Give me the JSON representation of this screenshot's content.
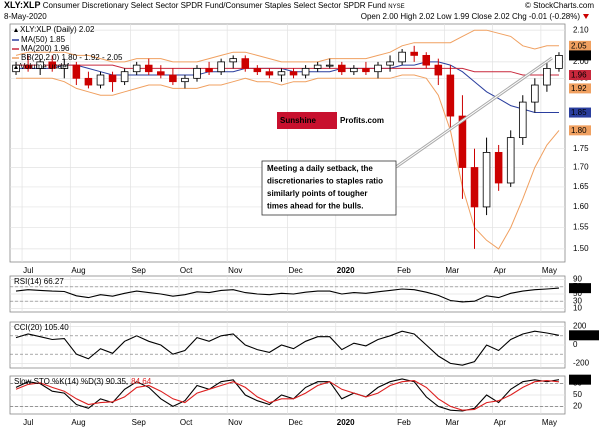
{
  "header": {
    "symbol": "XLY:XLP",
    "name": "Consumer Discretionary Select Sector SPDR Fund/Consumer Staples Select Sector SPDR Fund",
    "exchange": "NYSE",
    "date": "8-May-2020",
    "quote": "Open 2.00  High 2.02  Low 1.99  Close 2.02  Chg -0.01 (-0.28%)",
    "copyright": "© StockCharts.com"
  },
  "chart_data": [
    {
      "type": "candlestick",
      "price_name": "XLY:XLP (Daily) 2.02",
      "volume_label": "Volume undef",
      "categories": [
        null,
        "Jul",
        null,
        null,
        null,
        "Aug",
        null,
        null,
        null,
        null,
        "Sep",
        null,
        null,
        null,
        "Oct",
        null,
        null,
        null,
        "Nov",
        null,
        null,
        null,
        null,
        "Dec",
        null,
        null,
        null,
        "2020",
        null,
        null,
        null,
        null,
        "Feb",
        null,
        null,
        null,
        "Mar",
        null,
        null,
        null,
        "Apr",
        null,
        null,
        null,
        "May",
        null
      ],
      "open": [
        1.97,
        1.99,
        1.98,
        2.0,
        1.98,
        1.99,
        1.95,
        1.93,
        1.96,
        1.94,
        1.97,
        1.99,
        1.97,
        1.96,
        1.94,
        1.95,
        1.98,
        1.97,
        2.0,
        2.01,
        1.98,
        1.97,
        1.96,
        1.97,
        1.96,
        1.98,
        1.99,
        1.99,
        1.97,
        1.98,
        1.97,
        1.99,
        2.0,
        2.03,
        2.02,
        1.99,
        1.96,
        1.84,
        1.7,
        1.6,
        1.74,
        1.66,
        1.78,
        1.88,
        1.93,
        1.98
      ],
      "high": [
        2.0,
        2.02,
        2.01,
        2.02,
        2.01,
        2.0,
        1.97,
        1.97,
        1.97,
        1.98,
        2.0,
        2.01,
        1.99,
        1.98,
        1.96,
        1.99,
        2.0,
        2.01,
        2.02,
        2.02,
        1.99,
        1.98,
        1.98,
        1.98,
        1.99,
        2.0,
        2.01,
        2.0,
        1.99,
        2.0,
        2.0,
        2.02,
        2.04,
        2.05,
        2.03,
        2.01,
        1.99,
        1.9,
        1.75,
        1.78,
        1.76,
        1.8,
        1.9,
        1.95,
        2.0,
        2.03
      ],
      "low": [
        1.96,
        1.97,
        1.96,
        1.97,
        1.95,
        1.93,
        1.92,
        1.92,
        1.91,
        1.93,
        1.96,
        1.96,
        1.95,
        1.93,
        1.92,
        1.94,
        1.96,
        1.96,
        1.98,
        1.97,
        1.96,
        1.95,
        1.94,
        1.95,
        1.95,
        1.97,
        1.98,
        1.96,
        1.96,
        1.96,
        1.95,
        1.97,
        1.99,
        2.0,
        1.98,
        1.93,
        1.8,
        1.62,
        1.5,
        1.58,
        1.64,
        1.65,
        1.76,
        1.85,
        1.91,
        1.97
      ],
      "close": [
        1.99,
        1.98,
        2.0,
        1.98,
        1.99,
        1.95,
        1.93,
        1.96,
        1.94,
        1.97,
        1.99,
        1.97,
        1.96,
        1.94,
        1.95,
        1.98,
        1.97,
        2.0,
        2.01,
        1.98,
        1.97,
        1.96,
        1.97,
        1.96,
        1.98,
        1.99,
        1.99,
        1.97,
        1.98,
        1.97,
        1.99,
        2.0,
        2.03,
        2.02,
        1.99,
        1.96,
        1.84,
        1.7,
        1.6,
        1.74,
        1.66,
        1.78,
        1.88,
        1.93,
        1.98,
        2.02
      ],
      "up_color": "#000000",
      "down_color": "#cc0000",
      "series": [
        {
          "name": "MA(50) 1.85",
          "color": "#2a3e9e",
          "values": [
            1.98,
            1.98,
            1.98,
            1.98,
            1.99,
            1.99,
            1.98,
            1.97,
            1.96,
            1.96,
            1.96,
            1.96,
            1.96,
            1.96,
            1.96,
            1.96,
            1.97,
            1.97,
            1.97,
            1.98,
            1.98,
            1.98,
            1.98,
            1.97,
            1.97,
            1.97,
            1.97,
            1.98,
            1.98,
            1.98,
            1.98,
            1.98,
            1.99,
            1.99,
            2.0,
            2.0,
            1.99,
            1.97,
            1.94,
            1.91,
            1.89,
            1.87,
            1.86,
            1.85,
            1.85,
            1.85
          ]
        },
        {
          "name": "MA(200) 1.96",
          "color": "#c8283c",
          "values": [
            1.99,
            1.99,
            1.99,
            1.99,
            1.99,
            1.99,
            1.99,
            1.99,
            1.99,
            1.98,
            1.98,
            1.98,
            1.98,
            1.98,
            1.98,
            1.98,
            1.98,
            1.98,
            1.98,
            1.98,
            1.98,
            1.98,
            1.98,
            1.98,
            1.98,
            1.98,
            1.98,
            1.98,
            1.98,
            1.98,
            1.98,
            1.98,
            1.98,
            1.98,
            1.98,
            1.98,
            1.98,
            1.98,
            1.97,
            1.97,
            1.97,
            1.97,
            1.96,
            1.96,
            1.96,
            1.96
          ]
        },
        {
          "name": "BB(20,2.0) 1.80 - 1.92 - 2.05",
          "color": "#f0a060",
          "values": [
            2.02,
            2.03,
            2.03,
            2.03,
            2.03,
            2.02,
            2.02,
            2.01,
            2.0,
            2.0,
            2.01,
            2.01,
            2.01,
            2.0,
            2.0,
            2.0,
            2.01,
            2.02,
            2.03,
            2.03,
            2.02,
            2.01,
            2.0,
            2.0,
            2.0,
            2.0,
            2.01,
            2.01,
            2.01,
            2.01,
            2.02,
            2.03,
            2.05,
            2.06,
            2.06,
            2.06,
            2.06,
            2.08,
            2.1,
            2.1,
            2.09,
            2.08,
            2.05,
            2.04,
            2.05,
            2.05
          ]
        },
        {
          "color": "#f0a060",
          "values": [
            1.95,
            1.95,
            1.95,
            1.95,
            1.94,
            1.92,
            1.91,
            1.9,
            1.9,
            1.91,
            1.92,
            1.93,
            1.93,
            1.92,
            1.92,
            1.92,
            1.93,
            1.93,
            1.94,
            1.95,
            1.94,
            1.94,
            1.93,
            1.94,
            1.94,
            1.95,
            1.95,
            1.95,
            1.95,
            1.95,
            1.95,
            1.95,
            1.96,
            1.96,
            1.95,
            1.9,
            1.8,
            1.65,
            1.55,
            1.52,
            1.5,
            1.55,
            1.62,
            1.7,
            1.76,
            1.8
          ]
        }
      ],
      "log_scale": true,
      "grid": true,
      "ylim": [
        1.47,
        2.12
      ],
      "yticks": [
        {
          "value": 2.1,
          "label": "2.10"
        },
        {
          "value": 2,
          "label": "2.00"
        },
        1.95,
        1.75,
        {
          "value": 1.7,
          "label": "1.70"
        },
        1.65,
        {
          "value": 1.6,
          "label": "1.60"
        },
        1.55,
        {
          "value": 1.5,
          "label": "1.50"
        }
      ],
      "last_value_labels": [
        {
          "value": 2.05,
          "color": "#f0a060"
        },
        {
          "value": 2.02,
          "color": "#000000"
        },
        {
          "value": 1.96,
          "color": "#c8283c"
        },
        {
          "value": 1.92,
          "color": "#f0a060"
        },
        {
          "value": 1.85,
          "color": "#2a3e9e"
        },
        {
          "value": 1.8,
          "label": "1.80",
          "color": "#f0a060"
        }
      ],
      "logo": [
        "Sunshine",
        "Profits.com"
      ],
      "annotation": [
        "Meeting a daily setback, the",
        "discretionaries to staples ratio",
        "similarly points of tougher",
        "times ahead for the bulls."
      ]
    },
    {
      "type": "line",
      "title": "RSI(14) 66.27",
      "ylim": [
        0,
        100
      ],
      "yticks": [
        90,
        70,
        50,
        30,
        10
      ],
      "guides": [
        70,
        30
      ],
      "series": [
        {
          "color": "#000000",
          "values": [
            58,
            62,
            60,
            58,
            57,
            45,
            40,
            48,
            44,
            52,
            58,
            54,
            50,
            44,
            48,
            56,
            54,
            60,
            62,
            54,
            50,
            48,
            52,
            50,
            55,
            58,
            58,
            50,
            54,
            52,
            56,
            60,
            64,
            62,
            55,
            46,
            32,
            28,
            30,
            45,
            40,
            52,
            58,
            62,
            64,
            66.27
          ]
        }
      ],
      "last_value_labels": [
        {
          "value": 66.27,
          "color": "#000000"
        }
      ]
    },
    {
      "type": "line",
      "title": "CCI(20) 105.40",
      "ylim": [
        -250,
        250
      ],
      "yticks": [
        200,
        0,
        -200
      ],
      "guides": [
        100,
        -100
      ],
      "series": [
        {
          "color": "#000000",
          "values": [
            80,
            120,
            90,
            60,
            70,
            -100,
            -150,
            -40,
            -90,
            40,
            100,
            40,
            0,
            -100,
            -60,
            80,
            40,
            100,
            120,
            0,
            -50,
            -80,
            0,
            -40,
            40,
            90,
            90,
            -50,
            20,
            -10,
            60,
            100,
            150,
            120,
            0,
            -120,
            -200,
            -220,
            -180,
            0,
            -60,
            60,
            120,
            150,
            130,
            105.4
          ]
        }
      ],
      "last_value_labels": [
        {
          "value": 105.4,
          "label": "105.40",
          "color": "#000000"
        }
      ]
    },
    {
      "type": "line",
      "title": "Slow STO %K(14) %D(3) 90.35,",
      "title_extra": "84.64",
      "ylim": [
        0,
        100
      ],
      "yticks": [
        80,
        50,
        20
      ],
      "guides": [
        80,
        20
      ],
      "categories": [
        null,
        "Jul",
        null,
        null,
        null,
        "Aug",
        null,
        null,
        null,
        null,
        "Sep",
        null,
        null,
        null,
        "Oct",
        null,
        null,
        null,
        "Nov",
        null,
        null,
        null,
        null,
        "Dec",
        null,
        null,
        null,
        "2020",
        null,
        null,
        null,
        null,
        "Feb",
        null,
        null,
        null,
        "Mar",
        null,
        null,
        null,
        "Apr",
        null,
        null,
        null,
        "May",
        null
      ],
      "series": [
        {
          "color": "#000000",
          "values": [
            70,
            85,
            80,
            60,
            55,
            25,
            15,
            40,
            30,
            65,
            85,
            70,
            40,
            20,
            35,
            75,
            65,
            85,
            90,
            50,
            35,
            25,
            50,
            40,
            70,
            85,
            85,
            40,
            55,
            45,
            70,
            85,
            92,
            85,
            45,
            20,
            10,
            8,
            15,
            50,
            30,
            65,
            85,
            90,
            85,
            90.35
          ]
        },
        {
          "color": "#dd2020",
          "values": [
            65,
            78,
            82,
            70,
            60,
            40,
            25,
            30,
            32,
            45,
            70,
            75,
            60,
            40,
            30,
            55,
            65,
            75,
            85,
            70,
            45,
            30,
            40,
            40,
            55,
            75,
            85,
            65,
            55,
            45,
            55,
            75,
            85,
            88,
            70,
            40,
            20,
            10,
            12,
            30,
            35,
            50,
            70,
            85,
            88,
            84.64
          ]
        }
      ],
      "last_value_labels": [
        {
          "value": 90.35,
          "color": "#000000"
        }
      ]
    }
  ]
}
